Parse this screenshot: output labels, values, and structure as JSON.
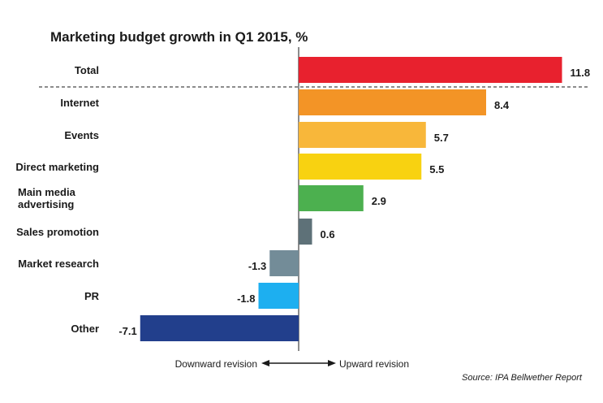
{
  "chart_data": {
    "type": "bar",
    "orientation": "horizontal",
    "title": "Marketing budget growth in Q1 2015, %",
    "categories": [
      "Total",
      "Internet",
      "Events",
      "Direct marketing",
      "Main media advertising",
      "Sales promotion",
      "Market research",
      "PR",
      "Other"
    ],
    "values": [
      11.8,
      8.4,
      5.7,
      5.5,
      2.9,
      0.6,
      -1.3,
      -1.8,
      -7.1
    ],
    "value_labels": [
      "11.8",
      "8.4",
      "5.7",
      "5.5",
      "2.9",
      "0.6",
      "-1.3",
      "-1.8",
      "-7.1"
    ],
    "colors": [
      "#e8212e",
      "#f39426",
      "#f8b73a",
      "#f8d211",
      "#4cb04f",
      "#5e7178",
      "#738c98",
      "#1daff0",
      "#223f8c"
    ],
    "axis_labels": {
      "negative": "Downward revision",
      "positive": "Upward revision"
    },
    "divider_after": "Total",
    "source": "Source: IPA Bellwether Report"
  }
}
